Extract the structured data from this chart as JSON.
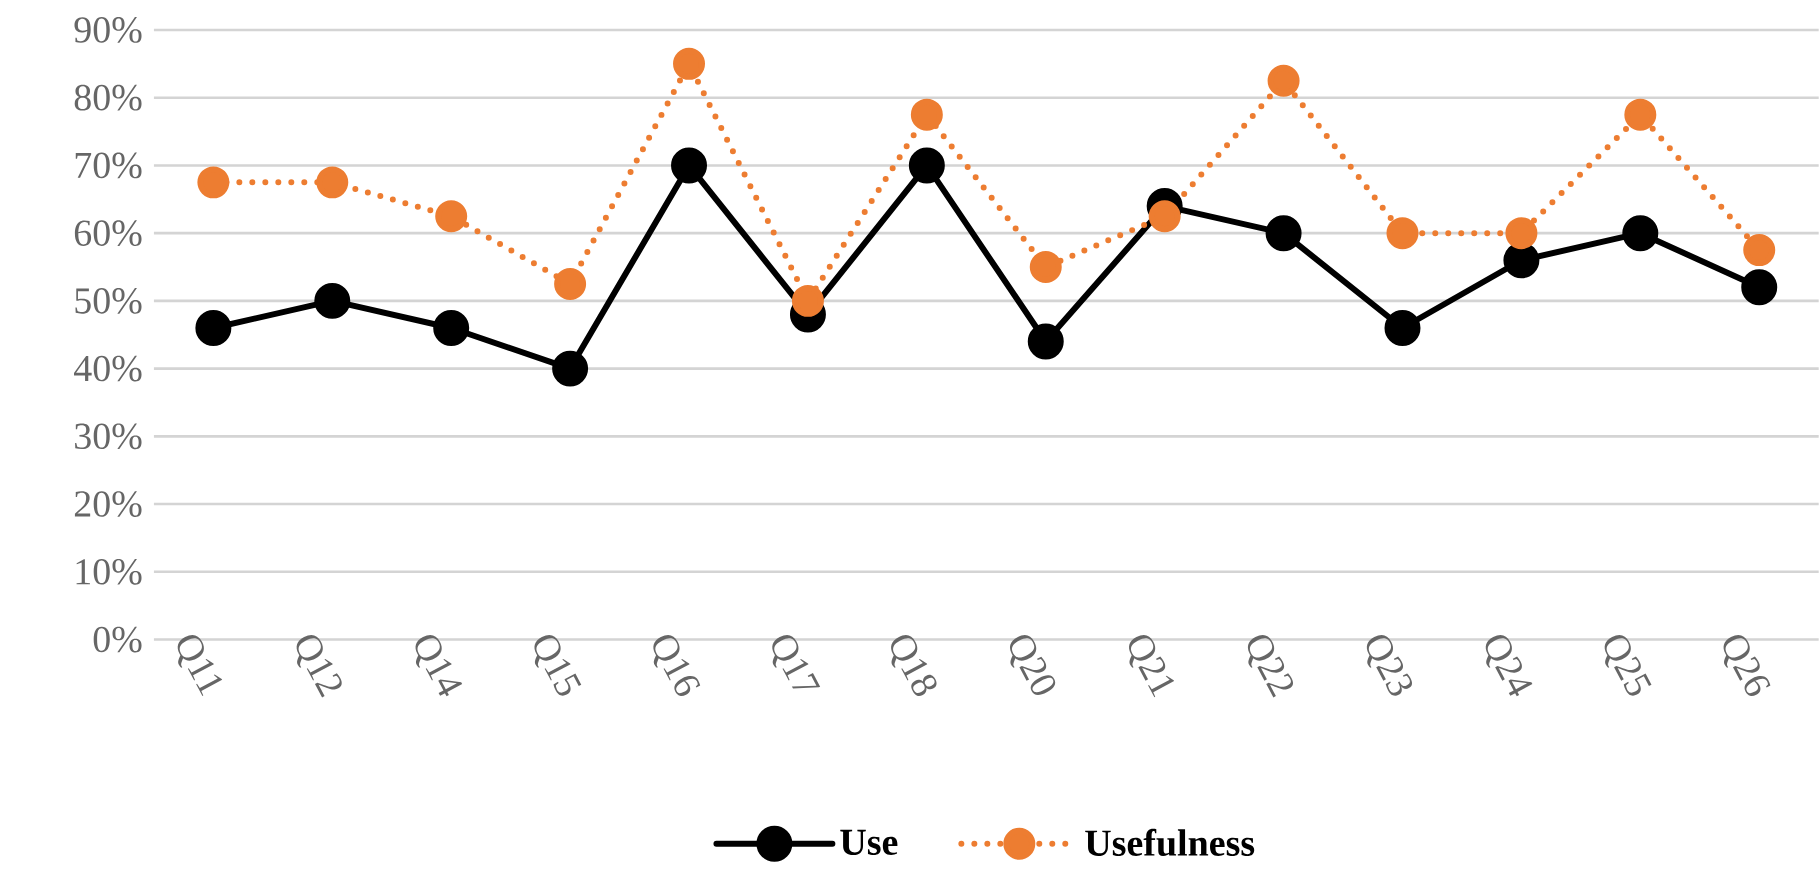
{
  "chart_data": {
    "type": "line",
    "categories": [
      "Q11",
      "Q12",
      "Q14",
      "Q15",
      "Q16",
      "Q17",
      "Q18",
      "Q20",
      "Q21",
      "Q22",
      "Q23",
      "Q24",
      "Q25",
      "Q26"
    ],
    "series": [
      {
        "name": "Use",
        "color": "#000000",
        "line_style": "solid",
        "values": [
          46,
          50,
          46,
          40,
          70,
          48,
          70,
          44,
          64,
          60,
          46,
          56,
          60,
          52
        ]
      },
      {
        "name": "Usefulness",
        "color": "#ed7d31",
        "line_style": "dotted",
        "values": [
          67.5,
          67.5,
          62.5,
          52.5,
          85,
          50,
          77.5,
          55,
          62.5,
          82.5,
          60,
          60,
          77.5,
          57.5
        ]
      }
    ],
    "ylim": [
      0,
      90
    ],
    "yticks": [
      {
        "value": 0,
        "label": "0%"
      },
      {
        "value": 10,
        "label": "10%"
      },
      {
        "value": 20,
        "label": "20%"
      },
      {
        "value": 30,
        "label": "30%"
      },
      {
        "value": 40,
        "label": "40%"
      },
      {
        "value": 50,
        "label": "50%"
      },
      {
        "value": 60,
        "label": "60%"
      },
      {
        "value": 70,
        "label": "70%"
      },
      {
        "value": 80,
        "label": "80%"
      },
      {
        "value": 90,
        "label": "90%"
      }
    ],
    "grid": "y",
    "legend": "bottom",
    "marker": "circle"
  }
}
